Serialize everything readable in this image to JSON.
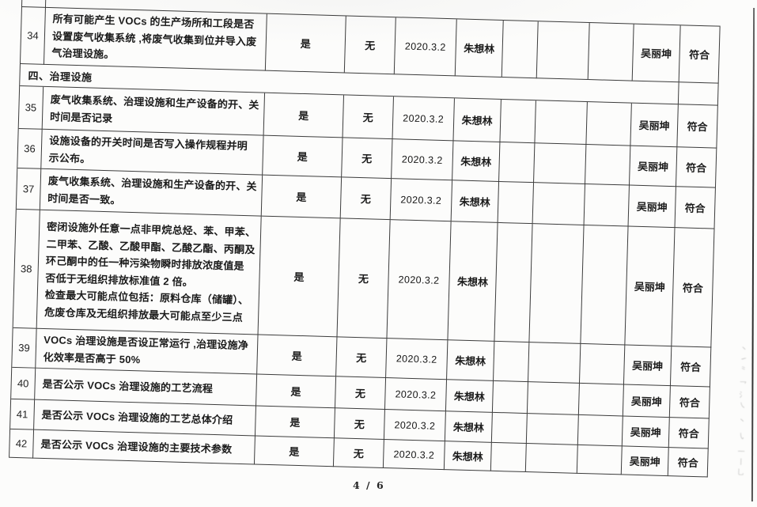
{
  "page": {
    "footer": "4 / 6"
  },
  "artifacts": {
    "bleed_marks": "丶㇀⺀ 乛氵㇏ 丶 ㇂ 一丨乚"
  },
  "table": {
    "rows": [
      {
        "type": "item",
        "num": "34",
        "question": "所有可能产生 VOCs 的生产场所和工段是否\n设置废气收集系统 ,将废气收集到位并导入废\n气治理设施。",
        "yes": "是",
        "no": "无",
        "date": "2020.3.2",
        "checker": "朱想林",
        "reviewer": "吴丽坤",
        "result": "符合"
      },
      {
        "type": "section",
        "label": "四、治理设施"
      },
      {
        "type": "item",
        "num": "35",
        "question": "废气收集系统、治理设施和生产设备的开、关\n时间是否记录",
        "yes": "是",
        "no": "无",
        "date": "2020.3.2",
        "checker": "朱想林",
        "reviewer": "吴丽坤",
        "result": "符合"
      },
      {
        "type": "item",
        "num": "36",
        "question": "设施设备的开关时间是否写入操作规程并明\n示公布。",
        "yes": "是",
        "no": "无",
        "date": "2020.3.2",
        "checker": "朱想林",
        "reviewer": "吴丽坤",
        "result": "符合"
      },
      {
        "type": "item",
        "num": "37",
        "question": "废气收集系统、治理设施和生产设备的开、关\n时间是否一致。",
        "yes": "是",
        "no": "无",
        "date": "2020.3.2",
        "checker": "朱想林",
        "reviewer": "吴丽坤",
        "result": "符合"
      },
      {
        "type": "item",
        "num": "38",
        "question": "密闭设施外任意一点非甲烷总烃、苯、甲苯、\n二甲苯、乙酸、乙酸甲酯、乙酸乙酯、丙酮及\n环己酮中的任一种污染物瞬时排放浓度值是\n否低于无组织排放标准值 2 倍。\n检查最大可能点位包括：原料仓库（储罐）、\n危废仓库及无组织排放最大可能点至少三点",
        "yes": "是",
        "no": "无",
        "date": "2020.3.2",
        "checker": "朱想林",
        "reviewer": "吴丽坤",
        "result": "符合"
      },
      {
        "type": "item",
        "num": "39",
        "question": "VOCs 治理设施是否设正常运行 ,治理设施净\n化效率是否高于 50%",
        "yes": "是",
        "no": "无",
        "date": "2020.3.2",
        "checker": "朱想林",
        "reviewer": "吴丽坤",
        "result": "符合"
      },
      {
        "type": "item",
        "num": "40",
        "question": "是否公示 VOCs 治理设施的工艺流程",
        "yes": "是",
        "no": "无",
        "date": "2020.3.2",
        "checker": "朱想林",
        "reviewer": "吴丽坤",
        "result": "符合"
      },
      {
        "type": "item",
        "num": "41",
        "question": "是否公示 VOCs 治理设施的工艺总体介绍",
        "yes": "是",
        "no": "无",
        "date": "2020.3.2",
        "checker": "朱想林",
        "reviewer": "吴丽坤",
        "result": "符合"
      },
      {
        "type": "item",
        "num": "42",
        "question": "是否公示 VOCs 治理设施的主要技术参数",
        "yes": "是",
        "no": "无",
        "date": "2020.3.2",
        "checker": "朱想林",
        "reviewer": "吴丽坤",
        "result": "符合"
      }
    ]
  }
}
